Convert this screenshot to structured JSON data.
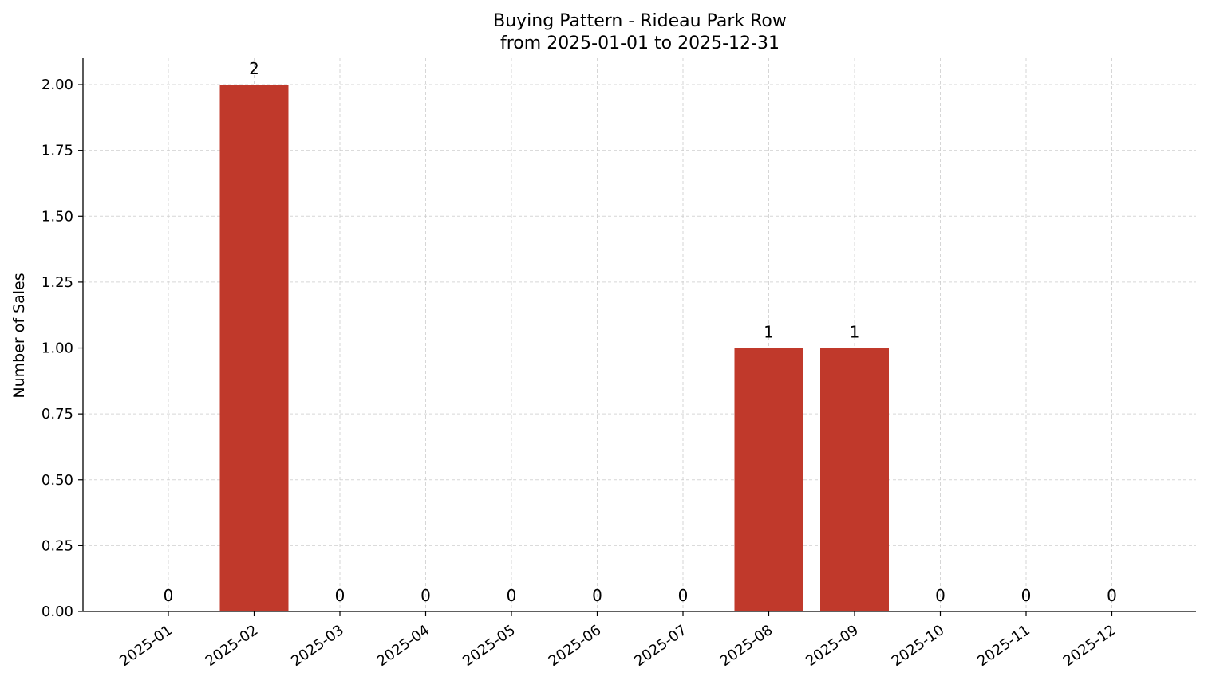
{
  "chart_data": {
    "type": "bar",
    "title": "Buying Pattern - Rideau Park Row",
    "subtitle": "from 2025-01-01 to 2025-12-31",
    "xlabel": "",
    "ylabel": "Number of Sales",
    "categories": [
      "2025-01",
      "2025-02",
      "2025-03",
      "2025-04",
      "2025-05",
      "2025-06",
      "2025-07",
      "2025-08",
      "2025-09",
      "2025-10",
      "2025-11",
      "2025-12"
    ],
    "values": [
      0,
      2,
      0,
      0,
      0,
      0,
      0,
      1,
      1,
      0,
      0,
      0
    ],
    "data_labels": [
      "0",
      "2",
      "0",
      "0",
      "0",
      "0",
      "0",
      "1",
      "1",
      "0",
      "0",
      "0"
    ],
    "ylim": [
      0,
      2.1
    ],
    "yticks": [
      0,
      0.25,
      0.5,
      0.75,
      1.0,
      1.25,
      1.5,
      1.75,
      2.0
    ],
    "ytick_labels": [
      "0.00",
      "0.25",
      "0.50",
      "0.75",
      "1.00",
      "1.25",
      "1.50",
      "1.75",
      "2.00"
    ],
    "grid": true,
    "bar_color": "#c0392b"
  }
}
